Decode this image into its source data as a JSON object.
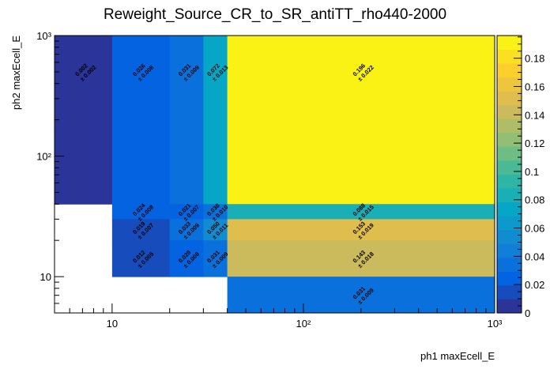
{
  "chart_data": {
    "type": "heatmap",
    "title": "Reweight_Source_CR_to_SR_antiTT_rho440-2000",
    "xlabel": "ph1 maxEcell_E",
    "ylabel": "ph2 maxEcell_E",
    "xscale": "log",
    "yscale": "log",
    "xlim": [
      5,
      1000
    ],
    "ylim": [
      5,
      1000
    ],
    "x_major_ticks": [
      {
        "value": 10,
        "label": "10"
      },
      {
        "value": 100,
        "label": "10²"
      },
      {
        "value": 1000,
        "label": "10³"
      }
    ],
    "y_major_ticks": [
      {
        "value": 10,
        "label": "10"
      },
      {
        "value": 100,
        "label": "10²"
      },
      {
        "value": 1000,
        "label": "10³"
      }
    ],
    "zlim": [
      0,
      0.196
    ],
    "colorbar_ticks": [
      {
        "value": 0,
        "label": "0"
      },
      {
        "value": 0.02,
        "label": "0.02"
      },
      {
        "value": 0.04,
        "label": "0.04"
      },
      {
        "value": 0.06,
        "label": "0.06"
      },
      {
        "value": 0.08,
        "label": "0.08"
      },
      {
        "value": 0.1,
        "label": "0.1"
      },
      {
        "value": 0.12,
        "label": "0.12"
      },
      {
        "value": 0.14,
        "label": "0.14"
      },
      {
        "value": 0.16,
        "label": "0.16"
      },
      {
        "value": 0.18,
        "label": "0.18"
      }
    ],
    "cells": [
      {
        "x": [
          5,
          10
        ],
        "y": [
          40,
          1000
        ],
        "value": 0.002,
        "error": 0.002,
        "label": "0.002",
        "err_label": "± 0.002",
        "label_y": 500
      },
      {
        "x": [
          10,
          20
        ],
        "y": [
          40,
          1000
        ],
        "value": 0.026,
        "error": 0.008,
        "label": "0.026",
        "err_label": "± 0.008",
        "label_y": 500
      },
      {
        "x": [
          20,
          30
        ],
        "y": [
          40,
          1000
        ],
        "value": 0.031,
        "error": 0.009,
        "label": "0.031",
        "err_label": "± 0.009",
        "label_y": 500
      },
      {
        "x": [
          30,
          40
        ],
        "y": [
          40,
          1000
        ],
        "value": 0.072,
        "error": 0.013,
        "label": "0.072",
        "err_label": "± 0.013",
        "label_y": 500
      },
      {
        "x": [
          40,
          1000
        ],
        "y": [
          40,
          1000
        ],
        "value": 0.196,
        "error": 0.022,
        "label": "0.196",
        "err_label": "± 0.022",
        "label_y": 500
      },
      {
        "x": [
          10,
          20
        ],
        "y": [
          30,
          40
        ],
        "value": 0.024,
        "error": 0.008,
        "label": "0.024",
        "err_label": "± 0.008"
      },
      {
        "x": [
          20,
          30
        ],
        "y": [
          30,
          40
        ],
        "value": 0.021,
        "error": 0.007,
        "label": "0.021",
        "err_label": "± 0.007"
      },
      {
        "x": [
          30,
          40
        ],
        "y": [
          30,
          40
        ],
        "value": 0.038,
        "error": 0.01,
        "label": "0.038",
        "err_label": "± 0.010"
      },
      {
        "x": [
          40,
          1000
        ],
        "y": [
          30,
          40
        ],
        "value": 0.088,
        "error": 0.015,
        "label": "0.088",
        "err_label": "± 0.015"
      },
      {
        "x": [
          10,
          20
        ],
        "y": [
          20,
          30
        ],
        "value": 0.019,
        "error": 0.007,
        "label": "0.019",
        "err_label": "± 0.007"
      },
      {
        "x": [
          20,
          30
        ],
        "y": [
          20,
          30
        ],
        "value": 0.033,
        "error": 0.009,
        "label": "0.033",
        "err_label": "± 0.009"
      },
      {
        "x": [
          30,
          40
        ],
        "y": [
          20,
          30
        ],
        "value": 0.05,
        "error": 0.011,
        "label": "0.050",
        "err_label": "± 0.011"
      },
      {
        "x": [
          40,
          1000
        ],
        "y": [
          20,
          30
        ],
        "value": 0.153,
        "error": 0.019,
        "label": "0.153",
        "err_label": "± 0.019"
      },
      {
        "x": [
          10,
          20
        ],
        "y": [
          10,
          20
        ],
        "value": 0.012,
        "error": 0.005,
        "label": "0.012",
        "err_label": "± 0.005"
      },
      {
        "x": [
          20,
          30
        ],
        "y": [
          10,
          20
        ],
        "value": 0.029,
        "error": 0.008,
        "label": "0.029",
        "err_label": "± 0.008"
      },
      {
        "x": [
          30,
          40
        ],
        "y": [
          10,
          20
        ],
        "value": 0.031,
        "error": 0.009,
        "label": "0.031",
        "err_label": "± 0.009"
      },
      {
        "x": [
          40,
          1000
        ],
        "y": [
          10,
          20
        ],
        "value": 0.143,
        "error": 0.018,
        "label": "0.143",
        "err_label": "± 0.018"
      },
      {
        "x": [
          40,
          1000
        ],
        "y": [
          5,
          10
        ],
        "value": 0.031,
        "error": 0.009,
        "label": "0.031",
        "err_label": "± 0.009"
      }
    ],
    "palette": [
      "#352a87",
      "#0363e1",
      "#1485d4",
      "#06a7c6",
      "#38b99e",
      "#92bf73",
      "#d9ba56",
      "#fcce2e",
      "#f9fb0e"
    ],
    "grid": false,
    "legend": "colorbar-right"
  }
}
